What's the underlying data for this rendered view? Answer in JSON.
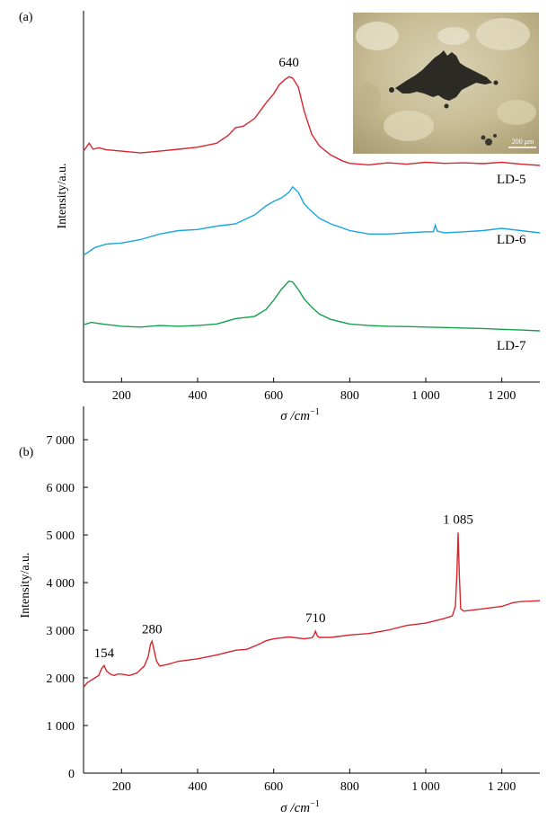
{
  "chart_data": [
    {
      "panel": "(a)",
      "type": "line",
      "xlabel": "σ /cm",
      "xlabel_sup": "−1",
      "ylabel": "Intensity/a.u.",
      "xlim": [
        100,
        1300
      ],
      "x_ticks": [
        200,
        400,
        600,
        800,
        1000,
        1200
      ],
      "x_tick_labels": [
        "200",
        "400",
        "600",
        "800",
        "1 000",
        "1 200"
      ],
      "y_ticks_shown": false,
      "peak_label": "640",
      "peak_label_x": 640,
      "series": [
        {
          "name": "LD-5",
          "color": "#d7262e",
          "x": [
            100,
            115,
            125,
            140,
            160,
            200,
            250,
            300,
            350,
            400,
            450,
            480,
            500,
            520,
            550,
            580,
            600,
            615,
            630,
            640,
            650,
            665,
            680,
            700,
            720,
            750,
            780,
            800,
            850,
            900,
            950,
            1000,
            1050,
            1100,
            1150,
            1200,
            1250,
            1300
          ],
          "values": [
            0.55,
            0.85,
            0.62,
            0.68,
            0.6,
            0.55,
            0.48,
            0.55,
            0.62,
            0.7,
            0.85,
            1.15,
            1.45,
            1.5,
            1.8,
            2.4,
            2.75,
            3.1,
            3.3,
            3.4,
            3.35,
            3.0,
            2.1,
            1.2,
            0.75,
            0.4,
            0.18,
            0.08,
            0.02,
            0.1,
            0.05,
            0.12,
            0.08,
            0.1,
            0.07,
            0.12,
            0.05,
            0.0
          ]
        },
        {
          "name": "LD-6",
          "color": "#1aa5e0",
          "x": [
            100,
            130,
            160,
            200,
            250,
            300,
            350,
            400,
            450,
            500,
            550,
            580,
            600,
            620,
            640,
            650,
            665,
            680,
            700,
            720,
            750,
            800,
            850,
            900,
            950,
            1000,
            1020,
            1025,
            1030,
            1050,
            1100,
            1150,
            1200,
            1250,
            1300
          ],
          "values": [
            0.0,
            0.35,
            0.5,
            0.55,
            0.7,
            0.95,
            1.1,
            1.15,
            1.3,
            1.4,
            1.8,
            2.2,
            2.4,
            2.55,
            2.8,
            3.05,
            2.8,
            2.3,
            1.95,
            1.65,
            1.4,
            1.1,
            0.95,
            0.95,
            1.0,
            1.05,
            1.05,
            1.35,
            1.08,
            1.0,
            1.05,
            1.1,
            1.2,
            1.1,
            1.0
          ]
        },
        {
          "name": "LD-7",
          "color": "#16a04c",
          "x": [
            100,
            120,
            150,
            200,
            250,
            300,
            350,
            400,
            450,
            500,
            550,
            580,
            600,
            620,
            640,
            650,
            665,
            680,
            700,
            720,
            750,
            800,
            850,
            900,
            950,
            1000,
            1050,
            1100,
            1150,
            1200,
            1250,
            1300
          ],
          "values": [
            0.4,
            0.55,
            0.45,
            0.3,
            0.25,
            0.35,
            0.3,
            0.35,
            0.45,
            0.8,
            0.95,
            1.4,
            2.0,
            2.7,
            3.25,
            3.2,
            2.7,
            2.1,
            1.55,
            1.1,
            0.75,
            0.45,
            0.35,
            0.3,
            0.28,
            0.25,
            0.22,
            0.18,
            0.15,
            0.1,
            0.05,
            0.0
          ]
        }
      ],
      "inset": {
        "kind": "micrograph",
        "scale_bar_label": "200 μm"
      }
    },
    {
      "panel": "(b)",
      "type": "line",
      "xlabel": "σ /cm",
      "xlabel_sup": "−1",
      "ylabel": "Intensity/a.u.",
      "xlim": [
        100,
        1300
      ],
      "ylim": [
        0,
        7700
      ],
      "x_ticks": [
        200,
        400,
        600,
        800,
        1000,
        1200
      ],
      "x_tick_labels": [
        "200",
        "400",
        "600",
        "800",
        "1 000",
        "1 200"
      ],
      "y_ticks": [
        0,
        1000,
        2000,
        3000,
        4000,
        5000,
        6000,
        7000
      ],
      "y_tick_labels": [
        "0",
        "1 000",
        "2 000",
        "3 000",
        "4 000",
        "5 000",
        "6 000",
        "7 000"
      ],
      "annotations": [
        {
          "label": "154",
          "x": 154,
          "y": 2250
        },
        {
          "label": "280",
          "x": 280,
          "y": 2750
        },
        {
          "label": "710",
          "x": 710,
          "y": 2980
        },
        {
          "label": "1 085",
          "x": 1085,
          "y": 5050
        }
      ],
      "series": [
        {
          "color": "#d7262e",
          "x": [
            100,
            110,
            120,
            130,
            140,
            148,
            154,
            160,
            170,
            180,
            190,
            200,
            220,
            240,
            260,
            270,
            276,
            280,
            285,
            292,
            300,
            320,
            350,
            400,
            450,
            500,
            530,
            560,
            580,
            600,
            640,
            660,
            680,
            700,
            705,
            710,
            715,
            720,
            750,
            800,
            850,
            900,
            950,
            1000,
            1050,
            1070,
            1078,
            1082,
            1085,
            1088,
            1092,
            1100,
            1150,
            1200,
            1230,
            1250,
            1300
          ],
          "values": [
            1800,
            1900,
            1950,
            2000,
            2050,
            2200,
            2260,
            2150,
            2080,
            2050,
            2080,
            2080,
            2050,
            2100,
            2250,
            2450,
            2700,
            2770,
            2600,
            2350,
            2250,
            2280,
            2350,
            2400,
            2480,
            2580,
            2600,
            2700,
            2780,
            2820,
            2860,
            2840,
            2820,
            2840,
            2880,
            2980,
            2880,
            2850,
            2850,
            2900,
            2930,
            3000,
            3100,
            3150,
            3250,
            3300,
            3500,
            4200,
            5050,
            4200,
            3450,
            3400,
            3450,
            3500,
            3580,
            3600,
            3620
          ]
        }
      ]
    }
  ]
}
